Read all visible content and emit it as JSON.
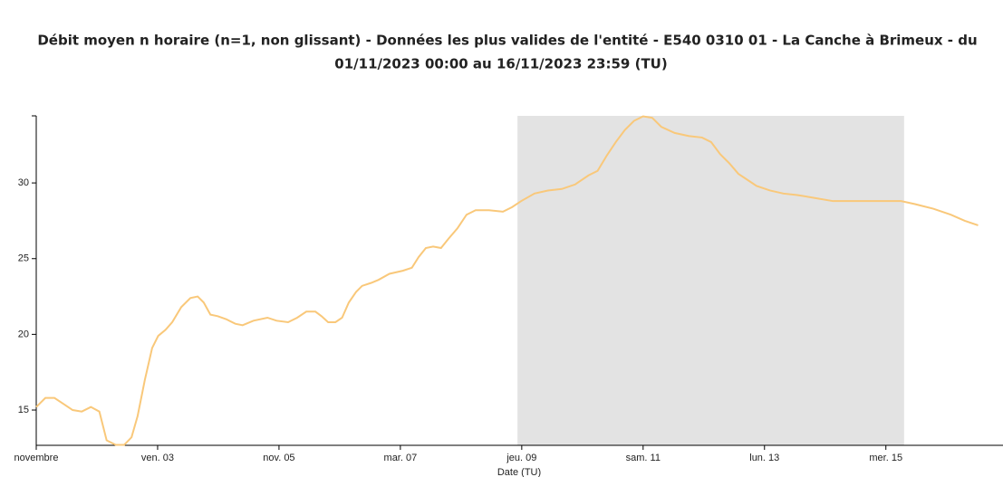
{
  "chart_data": {
    "type": "line",
    "title_lines": [
      "Débit moyen n horaire (n=1, non glissant) - Données les plus valides de l'entité - E540 0310 01 - La Canche à Brimeux - du",
      "01/11/2023 00:00 au 16/11/2023 23:59 (TU)"
    ],
    "x_label": "Date (TU)",
    "xlim": [
      0,
      15.93
    ],
    "ylim": [
      12.67,
      34.43
    ],
    "xticks": [
      {
        "value": 0,
        "label": "novembre"
      },
      {
        "value": 2,
        "label": "ven. 03"
      },
      {
        "value": 4,
        "label": "nov. 05"
      },
      {
        "value": 6,
        "label": "mar. 07"
      },
      {
        "value": 8,
        "label": "jeu. 09"
      },
      {
        "value": 10,
        "label": "sam. 11"
      },
      {
        "value": 12,
        "label": "lun. 13"
      },
      {
        "value": 14,
        "label": "mer. 15"
      }
    ],
    "yticks": [
      15,
      20,
      25,
      30
    ],
    "shaded_range": [
      7.93,
      14.3
    ],
    "shaded_color": "#e3e3e3",
    "series": [
      {
        "color": "#f9c87a",
        "x": [
          0,
          0.15,
          0.3,
          0.45,
          0.6,
          0.75,
          0.9,
          1.04,
          1.16,
          1.31,
          1.45,
          1.57,
          1.67,
          1.79,
          1.91,
          2.01,
          2.13,
          2.24,
          2.39,
          2.54,
          2.66,
          2.76,
          2.87,
          2.99,
          3.13,
          3.28,
          3.4,
          3.58,
          3.81,
          3.96,
          4.15,
          4.3,
          4.45,
          4.6,
          4.7,
          4.81,
          4.93,
          5.04,
          5.15,
          5.27,
          5.37,
          5.52,
          5.64,
          5.82,
          6.04,
          6.19,
          6.3,
          6.42,
          6.54,
          6.67,
          6.79,
          6.94,
          7.09,
          7.24,
          7.46,
          7.69,
          7.84,
          7.99,
          8.21,
          8.43,
          8.66,
          8.88,
          9.1,
          9.25,
          9.4,
          9.55,
          9.7,
          9.85,
          10,
          10.15,
          10.3,
          10.52,
          10.75,
          10.97,
          11.12,
          11.27,
          11.42,
          11.57,
          11.72,
          11.87,
          12.09,
          12.31,
          12.54,
          12.84,
          13.13,
          13.43,
          13.73,
          14.03,
          14.25,
          14.48,
          14.78,
          15.07,
          15.3,
          15.52
        ],
        "values": [
          15.2,
          15.8,
          15.8,
          15.4,
          15.0,
          14.9,
          15.2,
          14.9,
          13.0,
          12.7,
          12.7,
          13.2,
          14.6,
          17.0,
          19.1,
          19.9,
          20.3,
          20.8,
          21.8,
          22.4,
          22.5,
          22.1,
          21.3,
          21.2,
          21.0,
          20.7,
          20.6,
          20.9,
          21.1,
          20.9,
          20.8,
          21.1,
          21.5,
          21.5,
          21.2,
          20.8,
          20.8,
          21.1,
          22.1,
          22.8,
          23.2,
          23.4,
          23.6,
          24.0,
          24.2,
          24.4,
          25.1,
          25.7,
          25.8,
          25.7,
          26.3,
          27.0,
          27.9,
          28.2,
          28.2,
          28.1,
          28.4,
          28.8,
          29.3,
          29.5,
          29.6,
          29.9,
          30.5,
          30.8,
          31.8,
          32.7,
          33.5,
          34.1,
          34.4,
          34.3,
          33.7,
          33.3,
          33.1,
          33.0,
          32.7,
          31.9,
          31.3,
          30.6,
          30.2,
          29.8,
          29.5,
          29.3,
          29.2,
          29.0,
          28.8,
          28.8,
          28.8,
          28.8,
          28.8,
          28.6,
          28.3,
          27.9,
          27.5,
          27.2
        ]
      }
    ]
  }
}
